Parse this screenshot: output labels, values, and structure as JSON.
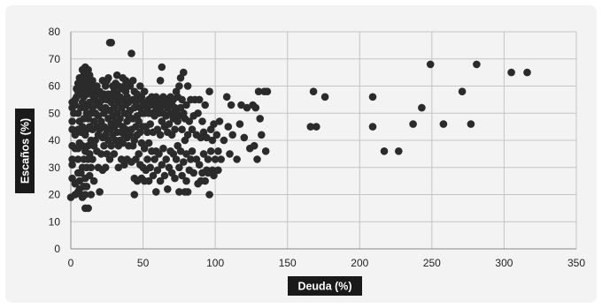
{
  "chart_data": {
    "type": "scatter",
    "xlabel": "Deuda (%)",
    "ylabel": "Escaños (%)",
    "xlim": [
      0,
      350
    ],
    "ylim": [
      0,
      80
    ],
    "x_ticks": [
      0,
      50,
      100,
      150,
      200,
      250,
      300,
      350
    ],
    "y_ticks": [
      0,
      10,
      20,
      30,
      40,
      50,
      60,
      70,
      80
    ],
    "grid": true,
    "legend": "none",
    "marker_color": "#2b2b2b",
    "points": [
      [
        0,
        19
      ],
      [
        1,
        26
      ],
      [
        1,
        31
      ],
      [
        1,
        33
      ],
      [
        1,
        38
      ],
      [
        1,
        44
      ],
      [
        1,
        47
      ],
      [
        1,
        52
      ],
      [
        1,
        54
      ],
      [
        2,
        50
      ],
      [
        3,
        20
      ],
      [
        3,
        24
      ],
      [
        3,
        37
      ],
      [
        3,
        42
      ],
      [
        3,
        53
      ],
      [
        3,
        55
      ],
      [
        4,
        56
      ],
      [
        4,
        59
      ],
      [
        5,
        21
      ],
      [
        5,
        28
      ],
      [
        5,
        33
      ],
      [
        5,
        37
      ],
      [
        5,
        44
      ],
      [
        5,
        50
      ],
      [
        5,
        58
      ],
      [
        5,
        61
      ],
      [
        6,
        22
      ],
      [
        6,
        25
      ],
      [
        6,
        39
      ],
      [
        6,
        47
      ],
      [
        6,
        60
      ],
      [
        6,
        63
      ],
      [
        7,
        20
      ],
      [
        7,
        28
      ],
      [
        7,
        43
      ],
      [
        7,
        52
      ],
      [
        7,
        57
      ],
      [
        7,
        60
      ],
      [
        7,
        62
      ],
      [
        8,
        19
      ],
      [
        8,
        30
      ],
      [
        8,
        38
      ],
      [
        8,
        45
      ],
      [
        8,
        54
      ],
      [
        8,
        58
      ],
      [
        8,
        61
      ],
      [
        8,
        66
      ],
      [
        9,
        23
      ],
      [
        9,
        33
      ],
      [
        9,
        48
      ],
      [
        9,
        56
      ],
      [
        9,
        64
      ],
      [
        10,
        15
      ],
      [
        10,
        20
      ],
      [
        10,
        26
      ],
      [
        10,
        36
      ],
      [
        10,
        42
      ],
      [
        10,
        52
      ],
      [
        10,
        60
      ],
      [
        10,
        67
      ],
      [
        11,
        23
      ],
      [
        11,
        30
      ],
      [
        11,
        44
      ],
      [
        11,
        50
      ],
      [
        11,
        57
      ],
      [
        11,
        62
      ],
      [
        11,
        65
      ],
      [
        12,
        15
      ],
      [
        12,
        33
      ],
      [
        12,
        38
      ],
      [
        12,
        48
      ],
      [
        12,
        53
      ],
      [
        12,
        59
      ],
      [
        12,
        66
      ],
      [
        13,
        27
      ],
      [
        13,
        35
      ],
      [
        13,
        45
      ],
      [
        13,
        54
      ],
      [
        13,
        61
      ],
      [
        13,
        64
      ],
      [
        14,
        20
      ],
      [
        14,
        30
      ],
      [
        14,
        40
      ],
      [
        14,
        50
      ],
      [
        14,
        57
      ],
      [
        15,
        33
      ],
      [
        15,
        44
      ],
      [
        15,
        52
      ],
      [
        15,
        60
      ],
      [
        15,
        62
      ],
      [
        16,
        25
      ],
      [
        16,
        38
      ],
      [
        16,
        47
      ],
      [
        16,
        55
      ],
      [
        16,
        58
      ],
      [
        17,
        40
      ],
      [
        17,
        50
      ],
      [
        17,
        56
      ],
      [
        18,
        36
      ],
      [
        18,
        45
      ],
      [
        18,
        53
      ],
      [
        18,
        60
      ],
      [
        19,
        30
      ],
      [
        19,
        42
      ],
      [
        19,
        49
      ],
      [
        19,
        57
      ],
      [
        20,
        21
      ],
      [
        20,
        44
      ],
      [
        20,
        54
      ],
      [
        20,
        58
      ],
      [
        21,
        35
      ],
      [
        21,
        47
      ],
      [
        21,
        52
      ],
      [
        22,
        29
      ],
      [
        22,
        41
      ],
      [
        22,
        55
      ],
      [
        22,
        62
      ],
      [
        23,
        38
      ],
      [
        23,
        45
      ],
      [
        23,
        50
      ],
      [
        23,
        57
      ],
      [
        24,
        30
      ],
      [
        24,
        42
      ],
      [
        24,
        52
      ],
      [
        24,
        60
      ],
      [
        25,
        35
      ],
      [
        25,
        44
      ],
      [
        25,
        55
      ],
      [
        25,
        62
      ],
      [
        26,
        40
      ],
      [
        26,
        48
      ],
      [
        26,
        57
      ],
      [
        26,
        63
      ],
      [
        27,
        33
      ],
      [
        27,
        44
      ],
      [
        27,
        51
      ],
      [
        27,
        76
      ],
      [
        28,
        38
      ],
      [
        28,
        46
      ],
      [
        28,
        54
      ],
      [
        28,
        76
      ],
      [
        29,
        42
      ],
      [
        29,
        49
      ],
      [
        29,
        56
      ],
      [
        29,
        60
      ],
      [
        30,
        35
      ],
      [
        30,
        45
      ],
      [
        30,
        52
      ],
      [
        30,
        58
      ],
      [
        31,
        40
      ],
      [
        31,
        47
      ],
      [
        31,
        55
      ],
      [
        31,
        61
      ],
      [
        32,
        43
      ],
      [
        32,
        50
      ],
      [
        32,
        57
      ],
      [
        32,
        64
      ],
      [
        33,
        30
      ],
      [
        33,
        38
      ],
      [
        33,
        46
      ],
      [
        33,
        54
      ],
      [
        33,
        60
      ],
      [
        34,
        40
      ],
      [
        34,
        48
      ],
      [
        34,
        56
      ],
      [
        35,
        33
      ],
      [
        35,
        43
      ],
      [
        35,
        52
      ],
      [
        35,
        59
      ],
      [
        36,
        39
      ],
      [
        36,
        45
      ],
      [
        36,
        55
      ],
      [
        36,
        63
      ],
      [
        37,
        31
      ],
      [
        37,
        42
      ],
      [
        37,
        50
      ],
      [
        37,
        60
      ],
      [
        38,
        44
      ],
      [
        38,
        53
      ],
      [
        38,
        58
      ],
      [
        38,
        62
      ],
      [
        39,
        33
      ],
      [
        39,
        41
      ],
      [
        39,
        47
      ],
      [
        39,
        56
      ],
      [
        40,
        38
      ],
      [
        40,
        49
      ],
      [
        40,
        54
      ],
      [
        40,
        61
      ],
      [
        41,
        42
      ],
      [
        41,
        51
      ],
      [
        41,
        60
      ],
      [
        42,
        32
      ],
      [
        42,
        44
      ],
      [
        42,
        72
      ],
      [
        43,
        38
      ],
      [
        43,
        48
      ],
      [
        43,
        55
      ],
      [
        43,
        62
      ],
      [
        44,
        20
      ],
      [
        44,
        26
      ],
      [
        44,
        40
      ],
      [
        44,
        52
      ],
      [
        44,
        58
      ],
      [
        45,
        33
      ],
      [
        45,
        45
      ],
      [
        45,
        54
      ],
      [
        46,
        25
      ],
      [
        46,
        42
      ],
      [
        46,
        49
      ],
      [
        46,
        57
      ],
      [
        47,
        35
      ],
      [
        47,
        47
      ],
      [
        47,
        55
      ],
      [
        48,
        31
      ],
      [
        48,
        43
      ],
      [
        48,
        52
      ],
      [
        48,
        60
      ],
      [
        49,
        26
      ],
      [
        49,
        39
      ],
      [
        49,
        50
      ],
      [
        49,
        56
      ],
      [
        50,
        30
      ],
      [
        50,
        45
      ],
      [
        50,
        54
      ],
      [
        51,
        25
      ],
      [
        51,
        37
      ],
      [
        51,
        50
      ],
      [
        51,
        58
      ],
      [
        52,
        29
      ],
      [
        52,
        45
      ],
      [
        52,
        53
      ],
      [
        53,
        33
      ],
      [
        53,
        43
      ],
      [
        53,
        52
      ],
      [
        54,
        25
      ],
      [
        54,
        39
      ],
      [
        54,
        50
      ],
      [
        54,
        55
      ],
      [
        55,
        30
      ],
      [
        55,
        46
      ],
      [
        55,
        53
      ],
      [
        56,
        36
      ],
      [
        56,
        50
      ],
      [
        56,
        56
      ],
      [
        57,
        27
      ],
      [
        57,
        43
      ],
      [
        57,
        53
      ],
      [
        58,
        33
      ],
      [
        58,
        49
      ],
      [
        58,
        54
      ],
      [
        59,
        21
      ],
      [
        59,
        36
      ],
      [
        59,
        51
      ],
      [
        59,
        56
      ],
      [
        60,
        29
      ],
      [
        60,
        44
      ],
      [
        60,
        53
      ],
      [
        61,
        35
      ],
      [
        61,
        50
      ],
      [
        61,
        55
      ],
      [
        62,
        25
      ],
      [
        62,
        42
      ],
      [
        62,
        52
      ],
      [
        62,
        62
      ],
      [
        63,
        31
      ],
      [
        63,
        47
      ],
      [
        63,
        54
      ],
      [
        63,
        67
      ],
      [
        64,
        37
      ],
      [
        64,
        50
      ],
      [
        64,
        56
      ],
      [
        65,
        27
      ],
      [
        65,
        45
      ],
      [
        65,
        53
      ],
      [
        66,
        33
      ],
      [
        66,
        49
      ],
      [
        66,
        55
      ],
      [
        67,
        22
      ],
      [
        67,
        43
      ],
      [
        67,
        52
      ],
      [
        68,
        30
      ],
      [
        68,
        46
      ],
      [
        68,
        54
      ],
      [
        69,
        36
      ],
      [
        69,
        50
      ],
      [
        69,
        56
      ],
      [
        70,
        28
      ],
      [
        70,
        42
      ],
      [
        70,
        53
      ],
      [
        71,
        35
      ],
      [
        71,
        48
      ],
      [
        71,
        55
      ],
      [
        72,
        26
      ],
      [
        72,
        44
      ],
      [
        72,
        52
      ],
      [
        73,
        33
      ],
      [
        73,
        50
      ],
      [
        73,
        58
      ],
      [
        74,
        38
      ],
      [
        74,
        47
      ],
      [
        74,
        56
      ],
      [
        75,
        21
      ],
      [
        75,
        30
      ],
      [
        75,
        49
      ],
      [
        75,
        60
      ],
      [
        76,
        36
      ],
      [
        76,
        52
      ],
      [
        76,
        63
      ],
      [
        77,
        27
      ],
      [
        77,
        44
      ],
      [
        77,
        55
      ],
      [
        78,
        32
      ],
      [
        78,
        50
      ],
      [
        78,
        65
      ],
      [
        79,
        21
      ],
      [
        79,
        40
      ],
      [
        79,
        48
      ],
      [
        80,
        25
      ],
      [
        80,
        35
      ],
      [
        80,
        53
      ],
      [
        81,
        21
      ],
      [
        81,
        42
      ],
      [
        81,
        60
      ],
      [
        82,
        29
      ],
      [
        82,
        47
      ],
      [
        83,
        33
      ],
      [
        83,
        55
      ],
      [
        84,
        36
      ],
      [
        84,
        44
      ],
      [
        85,
        28
      ],
      [
        85,
        49
      ],
      [
        86,
        55
      ],
      [
        87,
        33
      ],
      [
        87,
        42
      ],
      [
        88,
        24
      ],
      [
        88,
        50
      ],
      [
        89,
        31
      ],
      [
        89,
        55
      ],
      [
        90,
        25
      ],
      [
        90,
        41
      ],
      [
        91,
        28
      ],
      [
        91,
        47
      ],
      [
        92,
        35
      ],
      [
        92,
        43
      ],
      [
        93,
        25
      ],
      [
        93,
        53
      ],
      [
        94,
        29
      ],
      [
        94,
        41
      ],
      [
        95,
        28
      ],
      [
        95,
        33
      ],
      [
        96,
        20
      ],
      [
        96,
        58
      ],
      [
        97,
        36
      ],
      [
        97,
        44
      ],
      [
        98,
        29
      ],
      [
        98,
        40
      ],
      [
        99,
        27
      ],
      [
        99,
        46
      ],
      [
        100,
        33
      ],
      [
        101,
        42
      ],
      [
        102,
        29
      ],
      [
        102,
        36
      ],
      [
        103,
        47
      ],
      [
        104,
        33
      ],
      [
        106,
        40
      ],
      [
        108,
        56
      ],
      [
        109,
        45
      ],
      [
        110,
        35
      ],
      [
        111,
        53
      ],
      [
        112,
        42
      ],
      [
        115,
        33
      ],
      [
        117,
        46
      ],
      [
        118,
        53
      ],
      [
        120,
        41
      ],
      [
        122,
        52
      ],
      [
        124,
        37
      ],
      [
        126,
        53
      ],
      [
        127,
        38
      ],
      [
        128,
        52
      ],
      [
        129,
        33
      ],
      [
        130,
        58
      ],
      [
        131,
        48
      ],
      [
        132,
        42
      ],
      [
        134,
        58
      ],
      [
        135,
        36
      ],
      [
        136,
        58
      ],
      [
        166,
        45
      ],
      [
        168,
        58
      ],
      [
        170,
        45
      ],
      [
        176,
        56
      ],
      [
        209,
        56
      ],
      [
        209,
        45
      ],
      [
        217,
        36
      ],
      [
        227,
        36
      ],
      [
        237,
        46
      ],
      [
        243,
        52
      ],
      [
        249,
        68
      ],
      [
        258,
        46
      ],
      [
        271,
        58
      ],
      [
        277,
        46
      ],
      [
        281,
        68
      ],
      [
        305,
        65
      ],
      [
        316,
        65
      ]
    ]
  }
}
